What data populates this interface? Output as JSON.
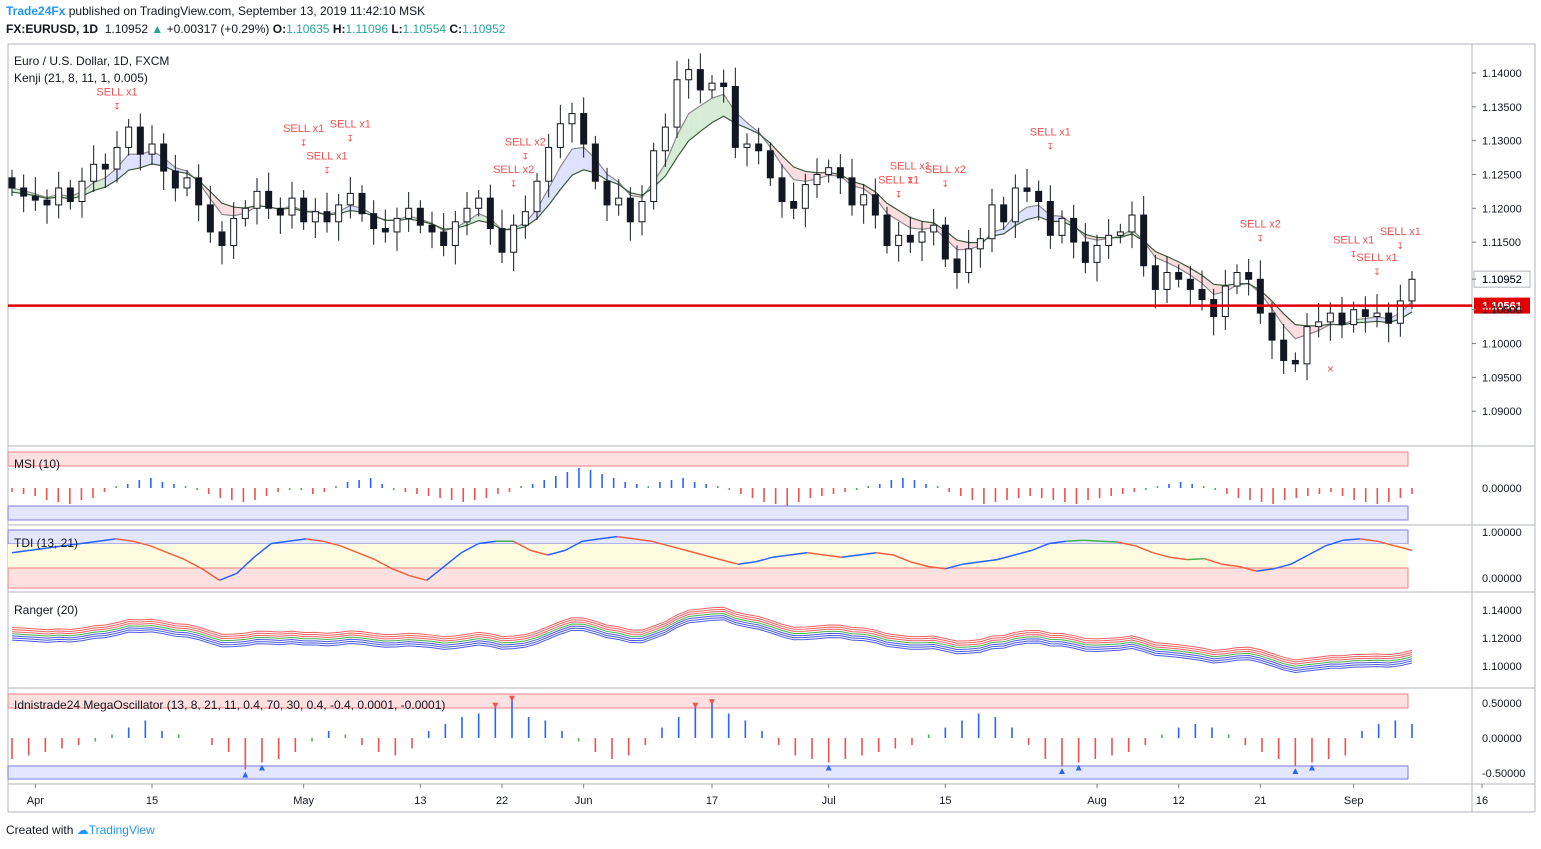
{
  "header": {
    "brand": "Trade24Fx",
    "published": "published on TradingView.com, September 13, 2019 11:42:10 MSK",
    "symbol": "FX:EURUSD, 1D",
    "last": "1.10952",
    "change": "+0.00317 (+0.29%)",
    "o_label": "O:",
    "o": "1.10635",
    "h_label": "H:",
    "h": "1.11096",
    "l_label": "L:",
    "l": "1.10554",
    "c_label": "C:",
    "c": "1.10952"
  },
  "footer": {
    "created_with": "Created with",
    "brand": "TradingView"
  },
  "colors": {
    "up": "#ffffff",
    "down": "#131722",
    "sell": "#f05050",
    "buy": "#2962ff",
    "line": "#e00000",
    "greenLine": "#4caf50"
  },
  "chart_data": [
    {
      "type": "candlestick",
      "title": "Euro / U.S. Dollar, 1D, FXCM",
      "indicator": "Kenji (21, 8, 11, 1, 0.005)",
      "ylim": [
        1.09,
        1.145
      ],
      "y_ticks": [
        "1.14000",
        "1.13500",
        "1.13000",
        "1.12500",
        "1.12000",
        "1.11500",
        "1.10952",
        "1.10500",
        "1.10000",
        "1.09500",
        "1.09000"
      ],
      "horizontal_line": {
        "value": 1.10561,
        "label": "1.10561"
      },
      "last_price": "1.10952",
      "x_ticks": [
        {
          "label": "Apr",
          "i": 2
        },
        {
          "label": "15",
          "i": 12
        },
        {
          "label": "May",
          "i": 25
        },
        {
          "label": "13",
          "i": 35
        },
        {
          "label": "22",
          "i": 42
        },
        {
          "label": "Jun",
          "i": 49
        },
        {
          "label": "17",
          "i": 60
        },
        {
          "label": "Jul",
          "i": 70
        },
        {
          "label": "15",
          "i": 80
        },
        {
          "label": "Aug",
          "i": 93
        },
        {
          "label": "12",
          "i": 100
        },
        {
          "label": "21",
          "i": 107
        },
        {
          "label": "Sep",
          "i": 115
        },
        {
          "label": "16",
          "i": 126
        }
      ],
      "closes": [
        1.123,
        1.1218,
        1.1212,
        1.1205,
        1.123,
        1.121,
        1.124,
        1.1265,
        1.1258,
        1.129,
        1.132,
        1.128,
        1.1295,
        1.1255,
        1.123,
        1.1245,
        1.1205,
        1.1165,
        1.1145,
        1.1185,
        1.12,
        1.1225,
        1.12,
        1.119,
        1.1215,
        1.118,
        1.1195,
        1.118,
        1.1205,
        1.1222,
        1.1192,
        1.117,
        1.1165,
        1.1185,
        1.12,
        1.1175,
        1.1165,
        1.1145,
        1.118,
        1.12,
        1.1215,
        1.117,
        1.1135,
        1.1175,
        1.1195,
        1.124,
        1.129,
        1.1325,
        1.134,
        1.1295,
        1.124,
        1.1205,
        1.1215,
        1.118,
        1.121,
        1.1285,
        1.132,
        1.139,
        1.1405,
        1.1375,
        1.1385,
        1.138,
        1.129,
        1.1295,
        1.1285,
        1.1245,
        1.121,
        1.12,
        1.1235,
        1.125,
        1.126,
        1.1245,
        1.1205,
        1.122,
        1.119,
        1.1145,
        1.116,
        1.115,
        1.1165,
        1.1175,
        1.1125,
        1.1105,
        1.114,
        1.1155,
        1.1205,
        1.118,
        1.123,
        1.1225,
        1.121,
        1.116,
        1.1185,
        1.115,
        1.112,
        1.1145,
        1.116,
        1.1165,
        1.119,
        1.1115,
        1.108,
        1.1105,
        1.1095,
        1.108,
        1.1065,
        1.104,
        1.1085,
        1.1105,
        1.1095,
        1.1045,
        1.1005,
        1.0975,
        1.097,
        1.1025,
        1.1032,
        1.1045,
        1.1028,
        1.105,
        1.104,
        1.1045,
        1.103,
        1.1063,
        1.1095
      ],
      "annotations": [
        {
          "text": "SELL x1",
          "i": 9
        },
        {
          "text": "SELL x1",
          "i": 25
        },
        {
          "text": "SELL x1",
          "i": 27
        },
        {
          "text": "SELL x1",
          "i": 29
        },
        {
          "text": "SELL x2",
          "i": 43
        },
        {
          "text": "SELL x2",
          "i": 44
        },
        {
          "text": "SELL x1",
          "i": 76
        },
        {
          "text": "SELL x1",
          "i": 77
        },
        {
          "text": "SELL x2",
          "i": 80
        },
        {
          "text": "SELL x1",
          "i": 89
        },
        {
          "text": "SELL x2",
          "i": 107
        },
        {
          "text": "SELL x1",
          "i": 115
        },
        {
          "text": "SELL x1",
          "i": 117
        },
        {
          "text": "SELL x1",
          "i": 119
        }
      ],
      "buy_mark": {
        "symbol": "×",
        "i": 113
      }
    },
    {
      "type": "bar",
      "title": "MSI (10)",
      "y_ticks": [
        "0.00000"
      ],
      "values": [
        -0.2,
        -0.3,
        -0.4,
        -0.6,
        -0.7,
        -0.8,
        -0.6,
        -0.5,
        -0.2,
        0.1,
        0.2,
        0.4,
        0.5,
        0.3,
        0.2,
        0.1,
        -0.1,
        -0.3,
        -0.5,
        -0.6,
        -0.7,
        -0.6,
        -0.4,
        -0.2,
        -0.1,
        -0.1,
        -0.3,
        -0.2,
        0.1,
        0.3,
        0.4,
        0.5,
        0.2,
        -0.1,
        -0.2,
        -0.3,
        -0.4,
        -0.5,
        -0.6,
        -0.7,
        -0.6,
        -0.5,
        -0.3,
        -0.2,
        0.1,
        0.2,
        0.4,
        0.6,
        0.8,
        1.0,
        0.9,
        0.7,
        0.5,
        0.3,
        0.2,
        0.1,
        0.3,
        0.4,
        0.5,
        0.3,
        0.2,
        0.1,
        -0.1,
        -0.3,
        -0.5,
        -0.7,
        -0.8,
        -0.9,
        -0.7,
        -0.5,
        -0.4,
        -0.3,
        -0.2,
        -0.1,
        0.1,
        0.2,
        0.4,
        0.5,
        0.4,
        0.2,
        0.1,
        -0.2,
        -0.4,
        -0.6,
        -0.8,
        -0.7,
        -0.6,
        -0.5,
        -0.4,
        -0.5,
        -0.6,
        -0.7,
        -0.8,
        -0.6,
        -0.5,
        -0.4,
        -0.3,
        -0.2,
        -0.1,
        0.1,
        0.2,
        0.3,
        0.2,
        0.1,
        -0.1,
        -0.3,
        -0.5,
        -0.6,
        -0.7,
        -0.8,
        -0.6,
        -0.5,
        -0.4,
        -0.3,
        -0.2,
        -0.4,
        -0.6,
        -0.7,
        -0.8,
        -0.7,
        -0.5,
        -0.3
      ]
    },
    {
      "type": "line",
      "title": "TDI (13, 21)",
      "y_ticks": [
        "1.00000",
        "0.00000"
      ],
      "values": [
        0.55,
        0.6,
        0.65,
        0.7,
        0.75,
        0.8,
        0.85,
        0.8,
        0.7,
        0.55,
        0.4,
        0.2,
        -0.05,
        0.1,
        0.45,
        0.75,
        0.8,
        0.85,
        0.8,
        0.7,
        0.55,
        0.4,
        0.2,
        0.05,
        -0.05,
        0.25,
        0.55,
        0.75,
        0.8,
        0.8,
        0.6,
        0.5,
        0.6,
        0.8,
        0.85,
        0.9,
        0.85,
        0.8,
        0.7,
        0.6,
        0.5,
        0.4,
        0.3,
        0.35,
        0.45,
        0.5,
        0.55,
        0.5,
        0.45,
        0.5,
        0.55,
        0.5,
        0.35,
        0.25,
        0.2,
        0.3,
        0.35,
        0.4,
        0.5,
        0.6,
        0.75,
        0.8,
        0.82,
        0.8,
        0.78,
        0.7,
        0.55,
        0.45,
        0.4,
        0.42,
        0.3,
        0.25,
        0.15,
        0.2,
        0.3,
        0.5,
        0.7,
        0.82,
        0.85,
        0.8,
        0.7,
        0.6
      ]
    },
    {
      "type": "line",
      "title": "Ranger (20)",
      "y_ticks": [
        "1.14000",
        "1.12000",
        "1.10000"
      ]
    },
    {
      "type": "bar",
      "title": "Idnistrade24 MegaOscillator (13, 8, 21, 11, 0.4, 70, 30, 0.4, -0.4, 0.0001, -0.0001)",
      "y_ticks": [
        "0.50000",
        "0.00000",
        "-0.50000"
      ],
      "values": [
        -0.3,
        -0.25,
        -0.2,
        -0.15,
        -0.1,
        -0.05,
        0.05,
        0.15,
        0.25,
        0.1,
        0.05,
        0.0,
        -0.1,
        -0.2,
        -0.45,
        -0.35,
        -0.3,
        -0.2,
        -0.05,
        0.1,
        0.05,
        -0.1,
        -0.2,
        -0.25,
        -0.15,
        0.1,
        0.2,
        0.3,
        0.35,
        0.45,
        0.55,
        0.3,
        0.25,
        0.1,
        -0.05,
        -0.2,
        -0.3,
        -0.25,
        -0.1,
        0.15,
        0.3,
        0.45,
        0.5,
        0.35,
        0.25,
        0.1,
        -0.1,
        -0.25,
        -0.3,
        -0.35,
        -0.3,
        -0.25,
        -0.2,
        -0.15,
        -0.1,
        0.05,
        0.15,
        0.25,
        0.35,
        0.3,
        0.15,
        -0.1,
        -0.3,
        -0.4,
        -0.35,
        -0.3,
        -0.25,
        -0.2,
        -0.1,
        0.05,
        0.15,
        0.2,
        0.15,
        0.05,
        -0.1,
        -0.2,
        -0.3,
        -0.4,
        -0.35,
        -0.3,
        -0.25,
        0.1,
        0.2,
        0.25,
        0.2
      ]
    }
  ]
}
